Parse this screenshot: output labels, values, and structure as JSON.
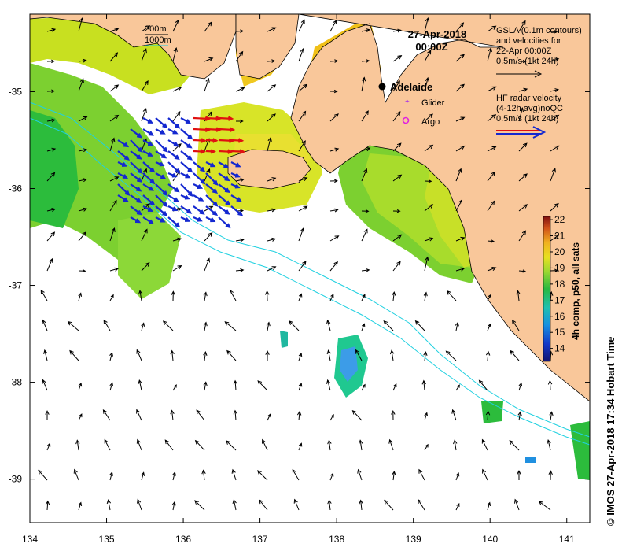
{
  "title": {
    "date": "27-Apr-2018",
    "time": "00:00Z"
  },
  "contour_legend": {
    "line1": "200m",
    "line2": "1000m",
    "color1": "#ffffff",
    "color2": "#20d0e0"
  },
  "gsla_note": {
    "line1": "GSLA (0.1m contours)",
    "line2": "and velocities for",
    "line3": "22-Apr 00:00Z",
    "line4": "0.5m/s (1kt 24h)"
  },
  "radar_note": {
    "line1": "HF radar velocity",
    "line2": "(4-12h avg)noQC",
    "line3": "0.5m/s (1kt 24h)"
  },
  "places": {
    "adelaide": "Adelaide",
    "glider": "Glider",
    "argo": "Argo"
  },
  "colorbar": {
    "title": "4h comp, p50, all sats",
    "ticks": [
      "14",
      "15",
      "16",
      "17",
      "18",
      "19",
      "20",
      "21",
      "22"
    ],
    "min": 13.2,
    "max": 22.2
  },
  "credit": "© IMOS 27-Apr-2018 17:34 Hobart Time",
  "colors": {
    "land": "#f9c79a",
    "ocean": "#ffffff",
    "isobath": "#20d0e0",
    "radar_blue": "#1428d0",
    "radar_red": "#e01010",
    "glider": "#b040e0",
    "argo": "#e020e0"
  },
  "chart_data": {
    "type": "map",
    "x_ticks": [
      "134",
      "135",
      "136",
      "137",
      "138",
      "139",
      "140",
      "141"
    ],
    "y_ticks": [
      "-35",
      "-36",
      "-37",
      "-38",
      "-39"
    ],
    "x_range": [
      134,
      141.3
    ],
    "y_range": [
      -39.45,
      -34.2
    ]
  }
}
